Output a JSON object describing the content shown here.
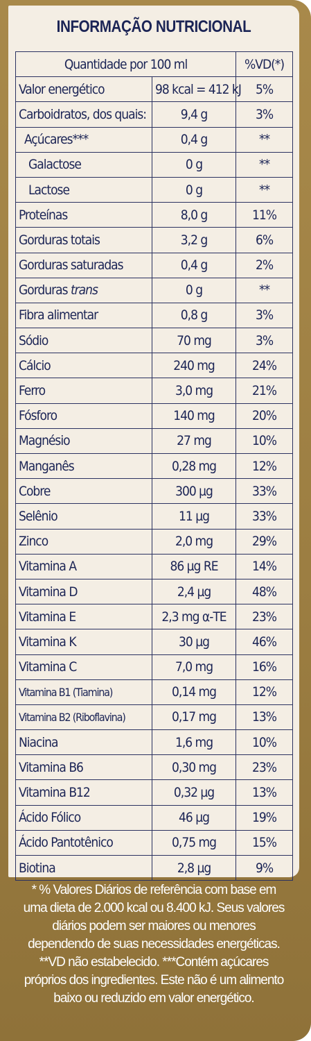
{
  "title": "INFORMAÇÃO NUTRICIONAL",
  "header": {
    "quantity": "Quantidade por 100 ml",
    "vd": "%VD(*)"
  },
  "rows": [
    {
      "name": "Valor energético",
      "amount": "98 kcal = 412 kJ",
      "vd": "5%"
    },
    {
      "name": "Carboidratos, dos quais:",
      "amount": "9,4 g",
      "vd": "3%"
    },
    {
      "name": "Açúcares***",
      "amount": "0,4 g",
      "vd": "**"
    },
    {
      "name": "Galactose",
      "amount": "0 g",
      "vd": "**"
    },
    {
      "name": "Lactose",
      "amount": "0 g",
      "vd": "**"
    },
    {
      "name": "Proteínas",
      "amount": "8,0 g",
      "vd": "11%"
    },
    {
      "name": "Gorduras totais",
      "amount": "3,2 g",
      "vd": "6%"
    },
    {
      "name": "Gorduras saturadas",
      "amount": "0,4 g",
      "vd": "2%"
    },
    {
      "name": "Gorduras",
      "name_italic": "trans",
      "amount": "0 g",
      "vd": "**"
    },
    {
      "name": "Fibra alimentar",
      "amount": "0,8 g",
      "vd": "3%"
    },
    {
      "name": "Sódio",
      "amount": "70 mg",
      "vd": "3%"
    },
    {
      "name": "Cálcio",
      "amount": "240 mg",
      "vd": "24%"
    },
    {
      "name": "Ferro",
      "amount": "3,0 mg",
      "vd": "21%"
    },
    {
      "name": "Fósforo",
      "amount": "140 mg",
      "vd": "20%"
    },
    {
      "name": "Magnésio",
      "amount": "27 mg",
      "vd": "10%"
    },
    {
      "name": "Manganês",
      "amount": "0,28 mg",
      "vd": "12%"
    },
    {
      "name": "Cobre",
      "amount": "300 µg",
      "vd": "33%"
    },
    {
      "name": "Selênio",
      "amount": "11 µg",
      "vd": "33%"
    },
    {
      "name": "Zinco",
      "amount": "2,0 mg",
      "vd": "29%"
    },
    {
      "name": "Vitamina A",
      "amount": "86 µg RE",
      "vd": "14%"
    },
    {
      "name": "Vitamina D",
      "amount": "2,4 µg",
      "vd": "48%"
    },
    {
      "name": "Vitamina E",
      "amount": "2,3 mg α-TE",
      "vd": "23%"
    },
    {
      "name": "Vitamina K",
      "amount": "30 µg",
      "vd": "46%"
    },
    {
      "name": "Vitamina C",
      "amount": "7,0 mg",
      "vd": "16%"
    },
    {
      "name": "Vitamina B1 (Tiamina)",
      "amount": "0,14 mg",
      "vd": "12%"
    },
    {
      "name": "Vitamina B2 (Riboflavina)",
      "amount": "0,17 mg",
      "vd": "13%"
    },
    {
      "name": "Niacina",
      "amount": "1,6 mg",
      "vd": "10%"
    },
    {
      "name": "Vitamina B6",
      "amount": "0,30 mg",
      "vd": "23%"
    },
    {
      "name": "Vitamina B12",
      "amount": "0,32 µg",
      "vd": "13%"
    },
    {
      "name": "Ácido Fólico",
      "amount": "46 µg",
      "vd": "19%"
    },
    {
      "name": "Ácido Pantotênico",
      "amount": "0,75 mg",
      "vd": "15%"
    },
    {
      "name": "Biotina",
      "amount": "2,8 µg",
      "vd": "9%"
    }
  ],
  "footnote": [
    "* % Valores Diários de referência com base em",
    "uma dieta de 2.000 kcal ou 8.400 kJ. Seus valores",
    "diários podem ser maiores ou menores",
    "dependendo de suas necessidades energéticas.",
    "**VD não estabelecido. ***Contém açúcares",
    "próprios dos ingredientes. Este não é um alimento",
    "baixo ou reduzido em valor energético."
  ]
}
